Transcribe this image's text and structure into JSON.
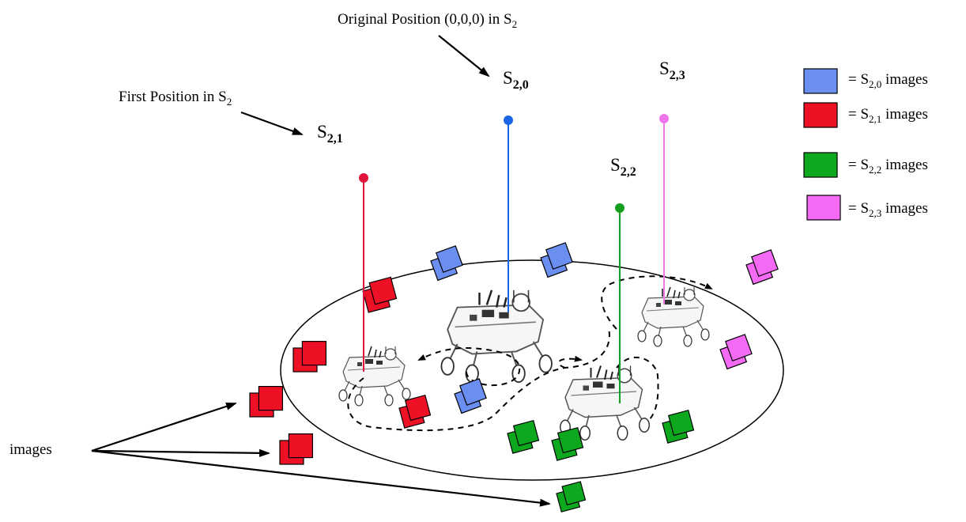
{
  "annotations": {
    "original_position_text": "Original Position (0,0,0) in S",
    "original_position_sub": "2",
    "first_position_text": "First Position in S",
    "first_position_sub": "2",
    "images_label": "images"
  },
  "positions": [
    {
      "id": "s20",
      "main": "S",
      "sub": "2,0",
      "color": "#1a66e6"
    },
    {
      "id": "s21",
      "main": "S",
      "sub": "2,1",
      "color": "#e0143c"
    },
    {
      "id": "s22",
      "main": "S",
      "sub": "2,2",
      "color": "#12a01e"
    },
    {
      "id": "s23",
      "main": "S",
      "sub": "2,3",
      "color": "#ee77ee"
    }
  ],
  "legend": [
    {
      "prefix": "= S",
      "sub": "2,0",
      "suffix": " images",
      "color": "#6b8ff0"
    },
    {
      "prefix": "= S",
      "sub": "2,1",
      "suffix": " images",
      "color": "#ee1126"
    },
    {
      "prefix": "= S",
      "sub": "2,2",
      "suffix": " images",
      "color": "#0da81e"
    },
    {
      "prefix": "= S",
      "sub": "2,3",
      "suffix": " images",
      "color": "#f46af4"
    }
  ],
  "image_colors": {
    "blue": "#6b8ff0",
    "red": "#ee1126",
    "green": "#0da81e",
    "pink": "#f46af4"
  }
}
